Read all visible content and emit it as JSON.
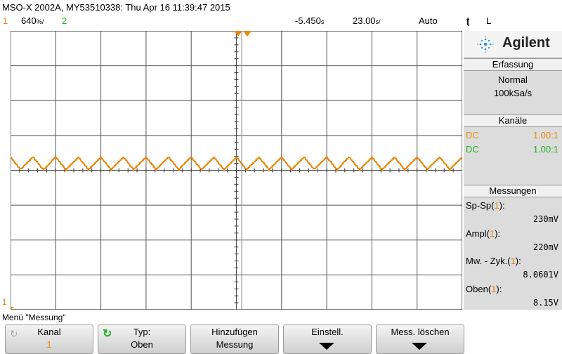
{
  "header": {
    "title": "MSO-X 2002A, MY53510338: Thu Apr 16 11:39:47 2015"
  },
  "status_bar": {
    "ch1_number": "1",
    "ch1_scale": "640",
    "ch1_unit": "%/",
    "ch2_number": "2",
    "time_delay": "-5.450",
    "time_delay_unit": "s",
    "time_scale": "23.00",
    "time_scale_unit": "s/",
    "trigger_mode": "Auto",
    "trigger_channel": "L"
  },
  "side_panel": {
    "brand": "Agilent",
    "acquisition": {
      "header": "Erfassung",
      "mode": "Normal",
      "rate": "100kSa/s"
    },
    "channels": {
      "header": "Kanäle",
      "items": [
        {
          "coupling": "DC",
          "ratio": "1.00:1",
          "color": "#e8890c"
        },
        {
          "coupling": "DC",
          "ratio": "1.00:1",
          "color": "#1eb41e"
        }
      ]
    },
    "measurements": {
      "header": "Messungen",
      "items": [
        {
          "name": "Sp-Sp",
          "channel": "1",
          "value": "230mV"
        },
        {
          "name": "Ampl",
          "channel": "1",
          "value": "220mV"
        },
        {
          "name": "Mw. - Zyk.",
          "channel": "1",
          "value": "8.0601V"
        },
        {
          "name": "Oben",
          "channel": "1",
          "value": "8.15V"
        }
      ]
    }
  },
  "menu": {
    "label": "Menü \"Messung\"",
    "softkeys": [
      {
        "line1": "Kanal",
        "line2": "1"
      },
      {
        "line1": "Typ:",
        "line2": "Oben"
      },
      {
        "line1": "Hinzufügen",
        "line2": "Messung"
      },
      {
        "line1": "Einstell.",
        "line2": ""
      },
      {
        "line1": "Mess. löschen",
        "line2": ""
      }
    ]
  },
  "trace": {
    "channel": "1",
    "color": "#e8890c",
    "cycles": 20,
    "center_div": 4.2,
    "amplitude_div": 0.18
  }
}
